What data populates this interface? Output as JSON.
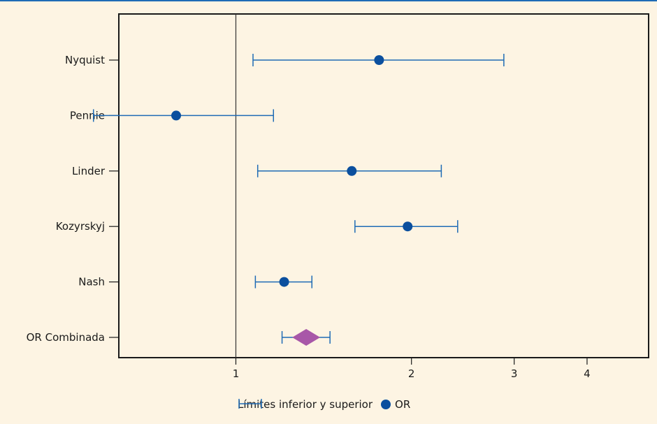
{
  "chart_data": {
    "type": "forest",
    "x_scale": "log",
    "xlim": [
      0.63,
      5.1
    ],
    "xticks": [
      1,
      2,
      3,
      4
    ],
    "reference_line": 1,
    "studies": [
      {
        "label": "Nyquist",
        "or": 1.76,
        "lower": 1.07,
        "upper": 2.88
      },
      {
        "label": "Pennie",
        "or": 0.79,
        "lower": 0.57,
        "upper": 1.16
      },
      {
        "label": "Linder",
        "or": 1.58,
        "lower": 1.09,
        "upper": 2.25
      },
      {
        "label": "Kozyrskyj",
        "or": 1.97,
        "lower": 1.6,
        "upper": 2.4
      },
      {
        "label": "Nash",
        "or": 1.21,
        "lower": 1.08,
        "upper": 1.35
      }
    ],
    "pooled": {
      "label": "OR Combinada",
      "or": 1.32,
      "lower": 1.2,
      "upper": 1.45
    },
    "legend": {
      "ci_label": "Límites inferior y superior",
      "point_label": "OR"
    },
    "colors": {
      "ci": "#1f6bb5",
      "point": "#0b4f9e",
      "pooled": "#a857a8",
      "background": "#fdf4e3",
      "plot_border": "#1a1a1a"
    }
  }
}
